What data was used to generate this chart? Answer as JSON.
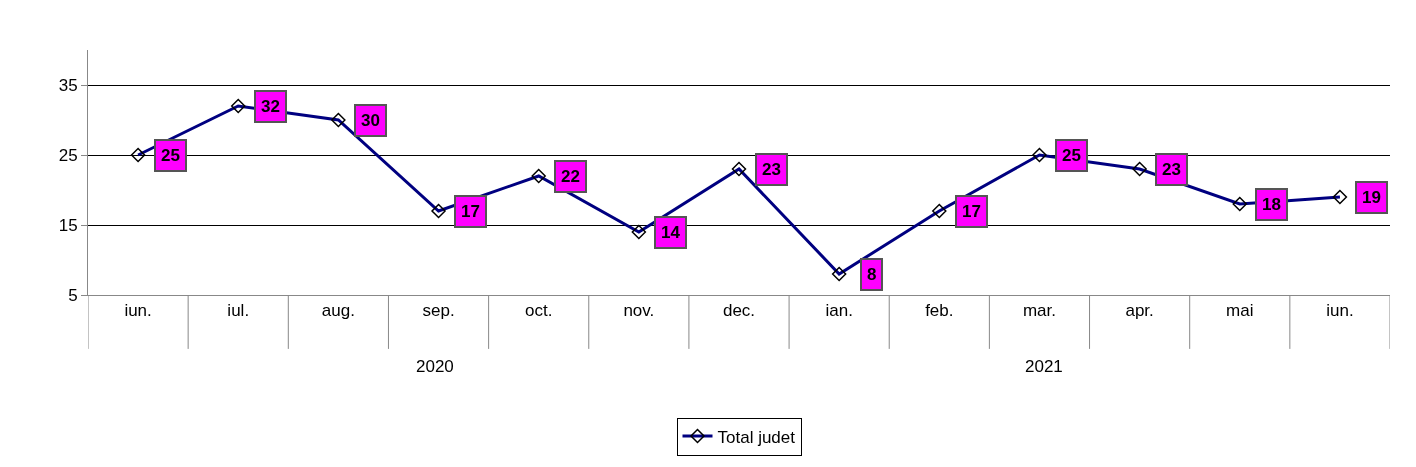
{
  "chart_data": {
    "type": "line",
    "categories": [
      "iun.",
      "iul.",
      "aug.",
      "sep.",
      "oct.",
      "nov.",
      "dec.",
      "ian.",
      "feb.",
      "mar.",
      "apr.",
      "mai",
      "iun."
    ],
    "series": [
      {
        "name": "Total judet",
        "color": "#000080",
        "values": [
          25,
          32,
          30,
          17,
          22,
          14,
          23,
          8,
          17,
          25,
          23,
          18,
          19
        ]
      }
    ],
    "annotations": [
      "2020",
      "2021"
    ],
    "ylim": [
      5,
      40
    ],
    "yticks": [
      5,
      15,
      25,
      35
    ],
    "data_labels": true,
    "grid": "y",
    "legend": "bottom",
    "marker": "diamond",
    "line_style": "solid"
  }
}
